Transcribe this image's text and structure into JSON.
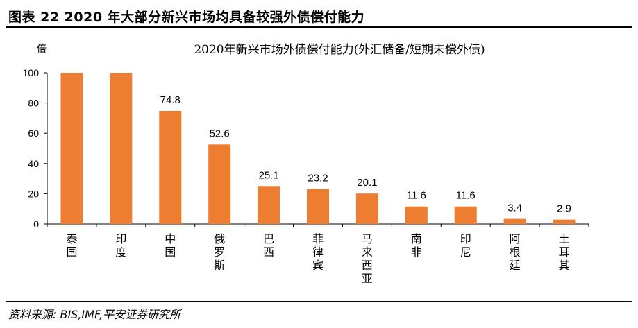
{
  "figure": {
    "title": "图表 22    2020 年大部分新兴市场均具备较强外债偿付能力",
    "source": "资料来源: BIS,IMF,平安证券研究所"
  },
  "chart_data": {
    "type": "bar",
    "title": "2020年新兴市场外债偿付能力(外汇储备/短期未偿外债)",
    "ylabel": "倍",
    "xlabel": "",
    "ylim": [
      0,
      100
    ],
    "yticks": [
      0,
      20,
      40,
      60,
      80,
      100
    ],
    "categories": [
      "泰国",
      "印度",
      "中国",
      "俄罗斯",
      "巴西",
      "菲律宾",
      "马来西亚",
      "南非",
      "印尼",
      "阿根廷",
      "土耳其"
    ],
    "values": [
      100,
      100,
      74.8,
      52.6,
      25.1,
      23.2,
      20.1,
      11.6,
      11.6,
      3.4,
      2.9
    ],
    "data_labels": [
      "",
      "",
      "74.8",
      "52.6",
      "25.1",
      "23.2",
      "20.1",
      "11.6",
      "11.6",
      "3.4",
      "2.9"
    ],
    "bar_color": "#ED7D31",
    "grid": false,
    "legend": "none"
  }
}
